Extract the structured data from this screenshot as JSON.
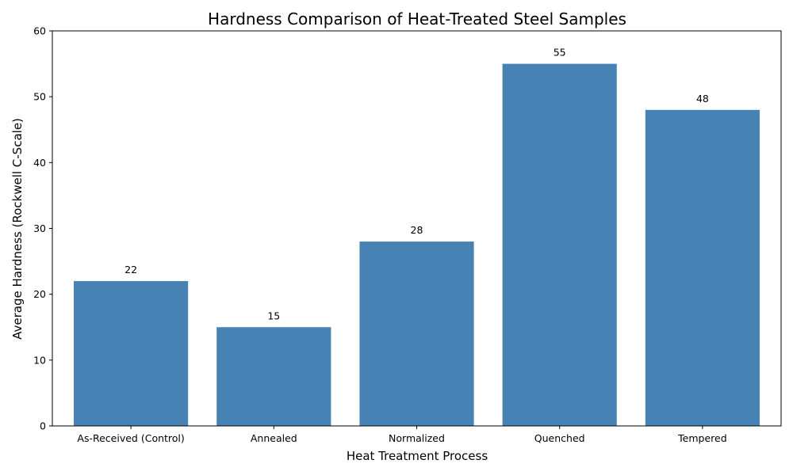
{
  "chart_data": {
    "type": "bar",
    "title": "Hardness Comparison of Heat-Treated Steel Samples",
    "xlabel": "Heat Treatment Process",
    "ylabel": "Average Hardness (Rockwell C-Scale)",
    "categories": [
      "As-Received (Control)",
      "Annealed",
      "Normalized",
      "Quenched",
      "Tempered"
    ],
    "values": [
      22,
      15,
      28,
      55,
      48
    ],
    "ylim": [
      0,
      60
    ],
    "yticks": [
      0,
      10,
      20,
      30,
      40,
      50,
      60
    ],
    "bar_color": "#4682b4",
    "grid": false,
    "legend": "none"
  }
}
